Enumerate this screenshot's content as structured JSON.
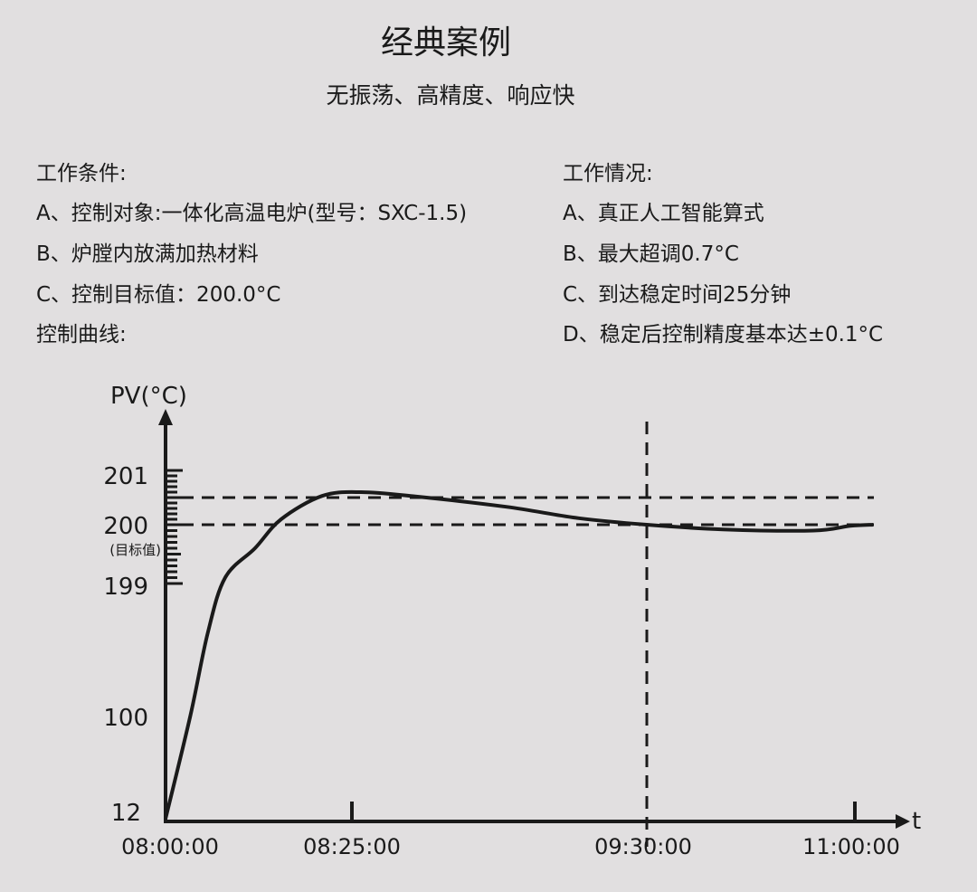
{
  "header": {
    "title": "经典案例",
    "subtitle": "无振荡、高精度、响应快"
  },
  "conditions": {
    "heading": "工作条件:",
    "items": [
      "A、控制对象:一体化高温电炉(型号：SXC-1.5)",
      "B、炉膛内放满加热材料",
      "C、控制目标值：200.0°C"
    ],
    "curve_label": "控制曲线:"
  },
  "situation": {
    "heading": "工作情况:",
    "items": [
      "A、真正人工智能算式",
      "B、最大超调0.7°C",
      "C、到达稳定时间25分钟",
      "D、稳定后控制精度基本达±0.1°C"
    ]
  },
  "chart_data": {
    "type": "line",
    "ylabel": "PV(°C)",
    "xlabel": "t",
    "y_ticks": [
      "12",
      "100",
      "199",
      "200",
      "201"
    ],
    "y_tick_note": "(目标值)",
    "x_ticks": [
      "08:00:00",
      "08:25:00",
      "09:30:00",
      "11:00:00"
    ],
    "y_scale": "non-linear (expanded 199–201)",
    "x_scale": "non-linear",
    "reference_lines": {
      "horizontal": [
        200.0,
        200.5
      ],
      "vertical": [
        "09:30:00"
      ],
      "style": "dashed"
    },
    "line_color": "#1a1a1a",
    "grid": false,
    "series": [
      {
        "x": [
          "08:00:00",
          "08:03:20",
          "08:05:40",
          "08:08:00",
          "08:12:00",
          "08:15:30",
          "08:21:00",
          "08:27:00",
          "08:39:00",
          "08:59:00",
          "09:15:00",
          "09:30:00",
          "10:03:00",
          "10:42:00",
          "10:58:00",
          "11:08:00"
        ],
        "y": [
          12,
          100,
          162,
          199.1,
          199.6,
          200.1,
          200.53,
          200.6,
          200.52,
          200.33,
          200.12,
          200.0,
          199.92,
          199.9,
          199.98,
          200.0
        ]
      }
    ]
  }
}
